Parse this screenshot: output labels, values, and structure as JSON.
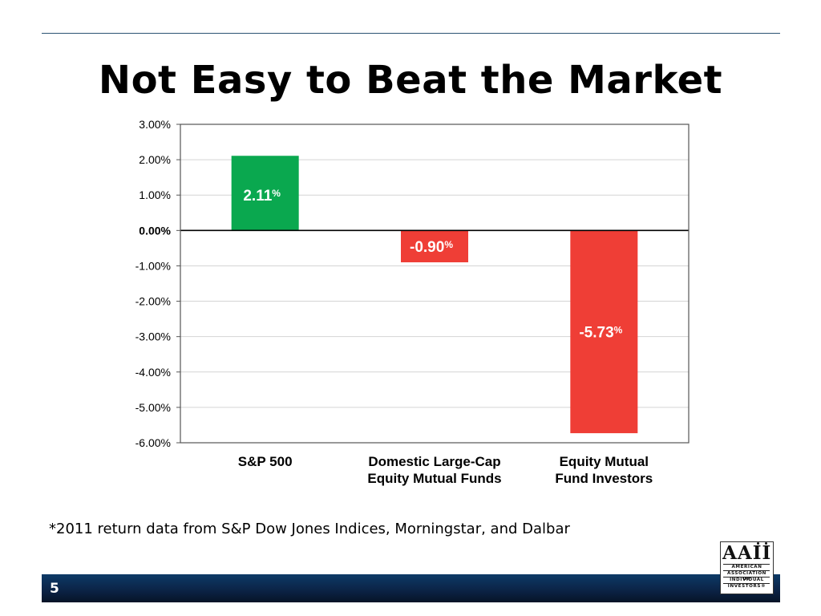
{
  "slide": {
    "title": "Not Easy to Beat the Market",
    "footnote": "*2011 return data from S&P Dow Jones Indices, Morningstar, and Dalbar",
    "page_number": "5",
    "logo": {
      "mark": "AAII",
      "lines": [
        "AMERICAN",
        "ASSOCIATION OF",
        "INDIVIDUAL",
        "INVESTORS®"
      ]
    }
  },
  "chart_data": {
    "type": "bar",
    "categories": [
      [
        "S&P 500"
      ],
      [
        "Domestic Large-Cap",
        "Equity Mutual Funds"
      ],
      [
        "Equity Mutual",
        "Fund Investors"
      ]
    ],
    "values": [
      2.11,
      -0.9,
      -5.73
    ],
    "data_labels": [
      "2.11",
      "-0.90",
      "-5.73"
    ],
    "data_label_suffix": "%",
    "colors": [
      "#0aa84f",
      "#ef3e36",
      "#ef3e36"
    ],
    "ylim": [
      -6,
      3
    ],
    "yticks": [
      {
        "value": 3,
        "label": "3.00%"
      },
      {
        "value": 2,
        "label": "2.00%"
      },
      {
        "value": 1,
        "label": "1.00%"
      },
      {
        "value": 0,
        "label": "0.00%"
      },
      {
        "value": -1,
        "label": "-1.00%"
      },
      {
        "value": -2,
        "label": "-2.00%"
      },
      {
        "value": -3,
        "label": "-3.00%"
      },
      {
        "value": -4,
        "label": "-4.00%"
      },
      {
        "value": -5,
        "label": "-5.00%"
      },
      {
        "value": -6,
        "label": "-6.00%"
      }
    ],
    "grid": true,
    "title": "",
    "xlabel": "",
    "ylabel": ""
  }
}
